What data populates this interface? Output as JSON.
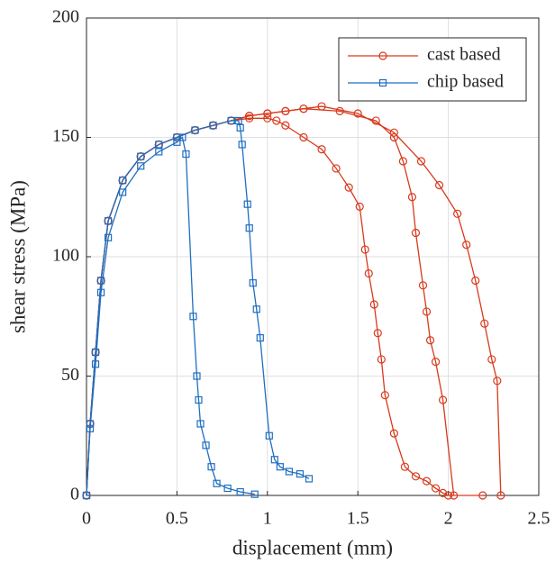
{
  "chart_data": {
    "type": "line",
    "xlabel": "displacement (mm)",
    "ylabel": "shear stress (MPa)",
    "xlim": [
      0,
      2.5
    ],
    "ylim": [
      0,
      200
    ],
    "xticks": [
      0,
      0.5,
      1,
      1.5,
      2,
      2.5
    ],
    "yticks": [
      0,
      50,
      100,
      150,
      200
    ],
    "grid": true,
    "legend": "northeast",
    "series": [
      {
        "name": "cast based",
        "color": "#d9391c",
        "marker": "circle",
        "curves": [
          {
            "x": [
              0,
              0.02,
              0.05,
              0.08,
              0.12,
              0.2,
              0.3,
              0.4,
              0.5,
              0.6,
              0.7,
              0.8,
              0.9,
              1.0,
              1.05,
              1.1,
              1.2,
              1.3,
              1.38,
              1.45,
              1.51,
              1.54,
              1.56,
              1.59,
              1.61,
              1.63,
              1.65,
              1.7,
              1.76,
              1.82,
              1.88,
              1.93,
              1.97,
              2.0,
              2.19
            ],
            "values": [
              0,
              30,
              60,
              90,
              115,
              132,
              142,
              147,
              150,
              153,
              155,
              157,
              158,
              158,
              157,
              155,
              150,
              145,
              137,
              129,
              121,
              103,
              93,
              80,
              68,
              57,
              42,
              26,
              12,
              8,
              6,
              3,
              1,
              0,
              0
            ]
          },
          {
            "x": [
              0,
              0.02,
              0.05,
              0.08,
              0.12,
              0.2,
              0.3,
              0.4,
              0.5,
              0.6,
              0.7,
              0.8,
              0.9,
              1.0,
              1.1,
              1.2,
              1.4,
              1.6,
              1.7,
              1.75,
              1.8,
              1.82,
              1.86,
              1.88,
              1.9,
              1.93,
              1.97,
              2.03
            ],
            "values": [
              0,
              30,
              60,
              90,
              115,
              132,
              142,
              147,
              150,
              153,
              155,
              157,
              159,
              160,
              161,
              162,
              161,
              157,
              150,
              140,
              125,
              110,
              88,
              77,
              65,
              56,
              40,
              0
            ]
          },
          {
            "x": [
              0,
              0.02,
              0.05,
              0.08,
              0.12,
              0.2,
              0.3,
              0.4,
              0.5,
              0.6,
              0.7,
              0.8,
              0.9,
              1.0,
              1.1,
              1.2,
              1.3,
              1.5,
              1.7,
              1.85,
              1.95,
              2.05,
              2.1,
              2.15,
              2.2,
              2.24,
              2.27,
              2.29
            ],
            "values": [
              0,
              30,
              60,
              90,
              115,
              132,
              142,
              147,
              150,
              153,
              155,
              157,
              159,
              160,
              161,
              162,
              163,
              160,
              152,
              140,
              130,
              118,
              105,
              90,
              72,
              57,
              48,
              0
            ]
          }
        ]
      },
      {
        "name": "chip based",
        "color": "#1f6fc0",
        "marker": "square",
        "curves": [
          {
            "x": [
              0,
              0.02,
              0.05,
              0.08,
              0.12,
              0.2,
              0.3,
              0.4,
              0.5,
              0.53,
              0.55,
              0.59,
              0.61,
              0.62,
              0.63,
              0.66,
              0.69,
              0.72,
              0.78,
              0.85,
              0.93
            ],
            "values": [
              0,
              28,
              55,
              85,
              108,
              127,
              138,
              144,
              148,
              150,
              143,
              75,
              50,
              40,
              30,
              21,
              12,
              5,
              3,
              1.5,
              0.5
            ]
          },
          {
            "x": [
              0,
              0.02,
              0.05,
              0.08,
              0.12,
              0.2,
              0.3,
              0.4,
              0.5,
              0.6,
              0.7,
              0.8,
              0.84,
              0.85,
              0.86,
              0.89,
              0.9,
              0.92,
              0.94,
              0.96,
              1.01,
              1.04,
              1.07,
              1.12,
              1.18,
              1.23
            ],
            "values": [
              0,
              30,
              60,
              90,
              115,
              132,
              142,
              147,
              150,
              153,
              155,
              157,
              157,
              154,
              147,
              122,
              112,
              89,
              78,
              66,
              25,
              15,
              12,
              10,
              9,
              7
            ]
          }
        ]
      }
    ]
  }
}
